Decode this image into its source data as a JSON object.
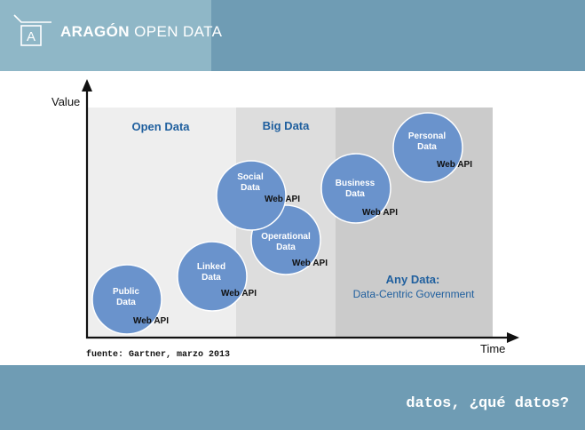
{
  "header": {
    "logo_letter": "A",
    "brand_bold": "ARAGÓN",
    "brand_light": "OPEN DATA"
  },
  "footer": {
    "caption": "datos, ¿qué datos?"
  },
  "source": "fuente: Gartner, marzo 2013",
  "colors": {
    "band": "#6f9cb4",
    "logo_box": "#8fb7c7",
    "region_open": "#eeeeee",
    "region_big": "#dddddd",
    "region_any": "#cbcbcb",
    "bubble": "#6a93cc",
    "bubble_text": "#ffffff",
    "region_title": "#1f5f9e"
  },
  "diagram": {
    "y_axis_label": "Value",
    "x_axis_label": "Time",
    "regions": {
      "open": "Open Data",
      "big": "Big Data",
      "any_title": "Any Data:",
      "any_sub": "Data-Centric Government"
    },
    "bubbles": {
      "public": {
        "line1": "Public",
        "line2": "Data",
        "tag": "Web API"
      },
      "linked": {
        "line1": "Linked",
        "line2": "Data",
        "tag": "Web API"
      },
      "social": {
        "line1": "Social",
        "line2": "Data",
        "tag": "Web API"
      },
      "operational": {
        "line1": "Operational",
        "line2": "Data",
        "tag": "Web API"
      },
      "business": {
        "line1": "Business",
        "line2": "Data",
        "tag": "Web API"
      },
      "personal": {
        "line1": "Personal",
        "line2": "Data",
        "tag": "Web API"
      }
    }
  }
}
